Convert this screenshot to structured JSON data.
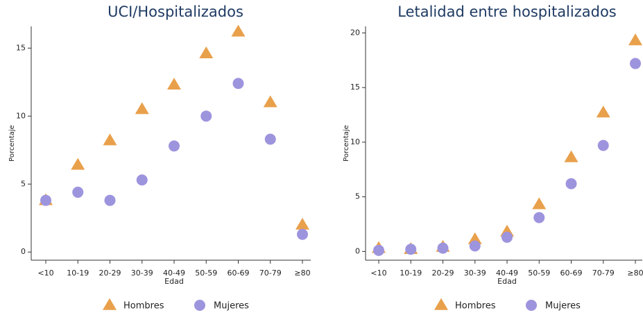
{
  "chart_data": [
    {
      "type": "scatter",
      "title": "UCI/Hospitalizados",
      "x_label": "Edad",
      "y_label": "Porcentaje",
      "categories": [
        "<10",
        "10-19",
        "20-29",
        "30-39",
        "40-49",
        "50-59",
        "60-69",
        "70-79",
        "≥80"
      ],
      "series": [
        {
          "name": "Hombres",
          "color": "#e9a04b",
          "marker": "triangle",
          "values": [
            3.8,
            6.4,
            8.2,
            10.5,
            12.3,
            14.6,
            16.2,
            11.0,
            2.0
          ]
        },
        {
          "name": "Mujeres",
          "color": "#9d94de",
          "marker": "circle",
          "values": [
            3.8,
            4.4,
            3.8,
            5.3,
            7.8,
            10.0,
            12.4,
            8.3,
            1.3
          ]
        }
      ],
      "ylim": [
        -0.6,
        16.6
      ],
      "yticks": [
        0,
        5,
        10,
        15
      ]
    },
    {
      "type": "scatter",
      "title": "Letalidad entre hospitalizados",
      "x_label": "Edad",
      "y_label": "Porcentaje",
      "categories": [
        "<10",
        "10-19",
        "20-29",
        "30-39",
        "40-49",
        "50-59",
        "60-69",
        "70-79",
        "≥80"
      ],
      "series": [
        {
          "name": "Hombres",
          "color": "#e9a04b",
          "marker": "triangle",
          "values": [
            0.3,
            0.2,
            0.4,
            1.1,
            1.8,
            4.3,
            8.6,
            12.7,
            19.3
          ]
        },
        {
          "name": "Mujeres",
          "color": "#9d94de",
          "marker": "circle",
          "values": [
            0.1,
            0.2,
            0.3,
            0.5,
            1.3,
            3.1,
            6.2,
            9.7,
            17.2
          ]
        }
      ],
      "ylim": [
        -0.8,
        20.6
      ],
      "yticks": [
        0,
        5,
        10,
        15,
        20
      ]
    }
  ]
}
